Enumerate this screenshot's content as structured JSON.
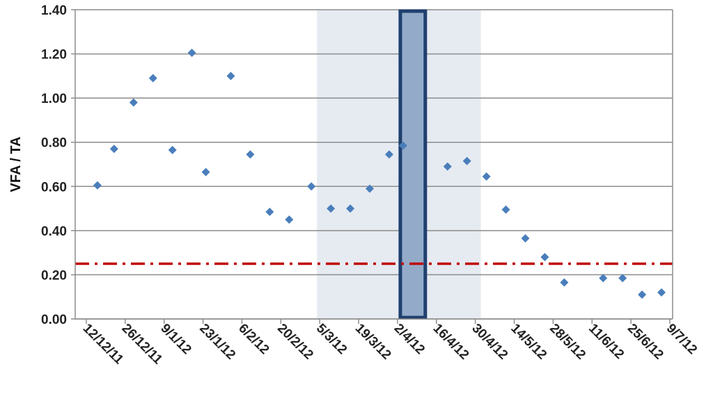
{
  "chart_data": {
    "type": "scatter",
    "title": "",
    "xlabel": "",
    "ylabel": "VFA / TA",
    "ylim": [
      0,
      1.4
    ],
    "xlim": [
      "2011-12-08",
      "2012-07-10"
    ],
    "y_ticks": [
      "0.00",
      "0.20",
      "0.40",
      "0.60",
      "0.80",
      "1.00",
      "1.20",
      "1.40"
    ],
    "x_ticks": [
      {
        "date": "2011-12-12",
        "label": "12/12/11"
      },
      {
        "date": "2011-12-26",
        "label": "26/12/11"
      },
      {
        "date": "2012-01-09",
        "label": "9/1/12"
      },
      {
        "date": "2012-01-23",
        "label": "23/1/12"
      },
      {
        "date": "2012-02-06",
        "label": "6/2/12"
      },
      {
        "date": "2012-02-20",
        "label": "20/2/12"
      },
      {
        "date": "2012-03-05",
        "label": "5/3/12"
      },
      {
        "date": "2012-03-19",
        "label": "19/3/12"
      },
      {
        "date": "2012-04-02",
        "label": "2/4/12"
      },
      {
        "date": "2012-04-16",
        "label": "16/4/12"
      },
      {
        "date": "2012-04-30",
        "label": "30/4/12"
      },
      {
        "date": "2012-05-14",
        "label": "14/5/12"
      },
      {
        "date": "2012-05-28",
        "label": "28/5/12"
      },
      {
        "date": "2012-06-11",
        "label": "11/6/12"
      },
      {
        "date": "2012-06-25",
        "label": "25/6/12"
      },
      {
        "date": "2012-07-09",
        "label": "9/7/12"
      }
    ],
    "grid": true,
    "series": [
      {
        "color": "#4a7ebb",
        "marker": "diamond",
        "points": [
          {
            "x": "2011-12-16",
            "y": 0.605
          },
          {
            "x": "2011-12-22",
            "y": 0.77
          },
          {
            "x": "2011-12-29",
            "y": 0.98
          },
          {
            "x": "2012-01-05",
            "y": 1.09
          },
          {
            "x": "2012-01-12",
            "y": 0.765
          },
          {
            "x": "2012-01-19",
            "y": 1.205
          },
          {
            "x": "2012-01-24",
            "y": 0.665
          },
          {
            "x": "2012-02-02",
            "y": 1.1
          },
          {
            "x": "2012-02-09",
            "y": 0.745
          },
          {
            "x": "2012-02-16",
            "y": 0.485
          },
          {
            "x": "2012-02-23",
            "y": 0.45
          },
          {
            "x": "2012-03-02",
            "y": 0.6
          },
          {
            "x": "2012-03-09",
            "y": 0.5
          },
          {
            "x": "2012-03-16",
            "y": 0.5
          },
          {
            "x": "2012-03-23",
            "y": 0.59
          },
          {
            "x": "2012-03-30",
            "y": 0.745
          },
          {
            "x": "2012-04-04",
            "y": 0.785
          },
          {
            "x": "2012-04-20",
            "y": 0.69
          },
          {
            "x": "2012-04-27",
            "y": 0.715
          },
          {
            "x": "2012-05-04",
            "y": 0.645
          },
          {
            "x": "2012-05-11",
            "y": 0.495
          },
          {
            "x": "2012-05-18",
            "y": 0.365
          },
          {
            "x": "2012-05-25",
            "y": 0.28
          },
          {
            "x": "2012-06-01",
            "y": 0.165
          },
          {
            "x": "2012-06-15",
            "y": 0.185
          },
          {
            "x": "2012-06-22",
            "y": 0.185
          },
          {
            "x": "2012-06-29",
            "y": 0.11
          },
          {
            "x": "2012-07-06",
            "y": 0.12
          }
        ]
      }
    ],
    "reference_line": {
      "y": 0.25,
      "color": "#c00000",
      "style": "dash-dot"
    },
    "shaded_region": {
      "x_start": "2012-03-04",
      "x_end": "2012-05-02",
      "color": "#e6ebf2"
    },
    "highlight_box": {
      "x_start": "2012-04-03",
      "x_end": "2012-04-12",
      "fill": "#93abc9",
      "stroke": "#1f3f6e"
    }
  }
}
